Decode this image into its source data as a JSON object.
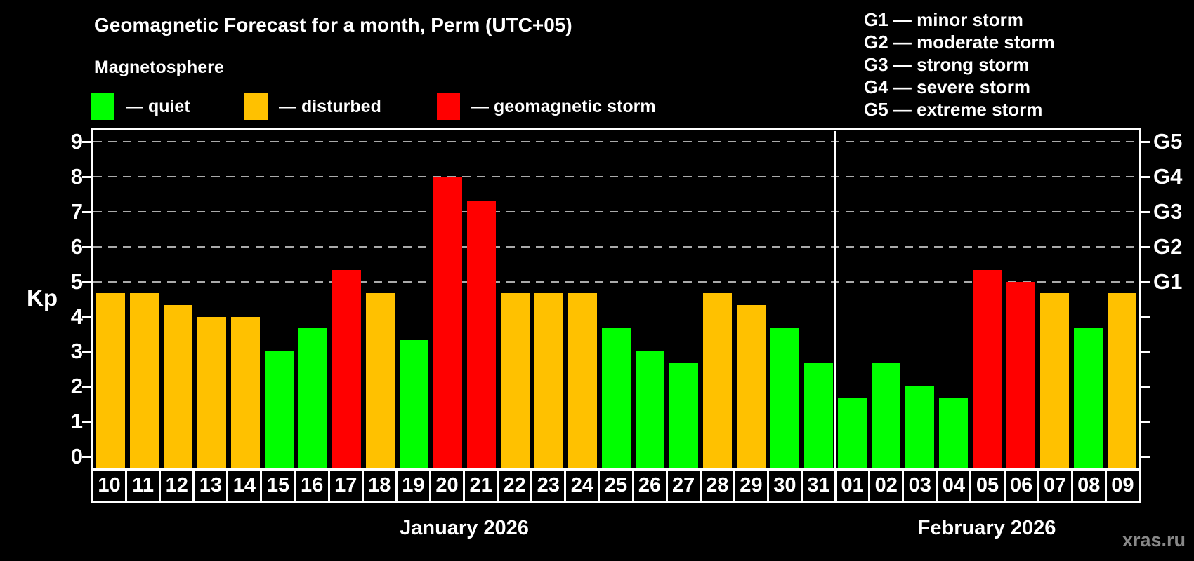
{
  "title": "Geomagnetic Forecast for a month, Perm (UTC+05)",
  "subtitle": "Magnetosphere",
  "legend": [
    {
      "key": "quiet",
      "label": "— quiet"
    },
    {
      "key": "disturbed",
      "label": "— disturbed"
    },
    {
      "key": "storm",
      "label": "— geomagnetic storm"
    }
  ],
  "storm_scale_legend": [
    "G1 — minor storm",
    "G2 — moderate storm",
    "G3 — strong storm",
    "G4 — severe storm",
    "G5 — extreme storm"
  ],
  "watermark": "xras.ru",
  "colors": {
    "quiet": "#00ff00",
    "disturbed": "#ffc100",
    "storm": "#ff0000",
    "axis": "#ffffff",
    "grid": "#aaaaaa",
    "watermark": "#888888",
    "background": "#000000"
  },
  "chart_data": {
    "type": "bar",
    "ylabel": "Kp",
    "ylim": [
      0,
      9.35
    ],
    "yticks": [
      0,
      1,
      2,
      3,
      4,
      5,
      6,
      7,
      8,
      9
    ],
    "gridlines_at": [
      5,
      6,
      7,
      8,
      9
    ],
    "grid": "dashed",
    "right_axis_labels": [
      {
        "kp": 5,
        "label": "G1"
      },
      {
        "kp": 6,
        "label": "G2"
      },
      {
        "kp": 7,
        "label": "G3"
      },
      {
        "kp": 8,
        "label": "G4"
      },
      {
        "kp": 9,
        "label": "G5"
      }
    ],
    "groups": [
      {
        "label": "January 2026",
        "days": [
          {
            "day": "10",
            "kp": 4.67,
            "status": "disturbed"
          },
          {
            "day": "11",
            "kp": 4.67,
            "status": "disturbed"
          },
          {
            "day": "12",
            "kp": 4.33,
            "status": "disturbed"
          },
          {
            "day": "13",
            "kp": 4.0,
            "status": "disturbed"
          },
          {
            "day": "14",
            "kp": 4.0,
            "status": "disturbed"
          },
          {
            "day": "15",
            "kp": 3.0,
            "status": "quiet"
          },
          {
            "day": "16",
            "kp": 3.67,
            "status": "quiet"
          },
          {
            "day": "17",
            "kp": 5.33,
            "status": "storm"
          },
          {
            "day": "18",
            "kp": 4.67,
            "status": "disturbed"
          },
          {
            "day": "19",
            "kp": 3.33,
            "status": "quiet"
          },
          {
            "day": "20",
            "kp": 8.0,
            "status": "storm"
          },
          {
            "day": "21",
            "kp": 7.33,
            "status": "storm"
          },
          {
            "day": "22",
            "kp": 4.67,
            "status": "disturbed"
          },
          {
            "day": "23",
            "kp": 4.67,
            "status": "disturbed"
          },
          {
            "day": "24",
            "kp": 4.67,
            "status": "disturbed"
          },
          {
            "day": "25",
            "kp": 3.67,
            "status": "quiet"
          },
          {
            "day": "26",
            "kp": 3.0,
            "status": "quiet"
          },
          {
            "day": "27",
            "kp": 2.67,
            "status": "quiet"
          },
          {
            "day": "28",
            "kp": 4.67,
            "status": "disturbed"
          },
          {
            "day": "29",
            "kp": 4.33,
            "status": "disturbed"
          },
          {
            "day": "30",
            "kp": 3.67,
            "status": "quiet"
          },
          {
            "day": "31",
            "kp": 2.67,
            "status": "quiet"
          }
        ]
      },
      {
        "label": "February 2026",
        "days": [
          {
            "day": "01",
            "kp": 1.67,
            "status": "quiet"
          },
          {
            "day": "02",
            "kp": 2.67,
            "status": "quiet"
          },
          {
            "day": "03",
            "kp": 2.0,
            "status": "quiet"
          },
          {
            "day": "04",
            "kp": 1.67,
            "status": "quiet"
          },
          {
            "day": "05",
            "kp": 5.33,
            "status": "storm"
          },
          {
            "day": "06",
            "kp": 5.0,
            "status": "storm"
          },
          {
            "day": "07",
            "kp": 4.67,
            "status": "disturbed"
          },
          {
            "day": "08",
            "kp": 3.67,
            "status": "quiet"
          },
          {
            "day": "09",
            "kp": 4.67,
            "status": "disturbed"
          }
        ]
      }
    ]
  }
}
